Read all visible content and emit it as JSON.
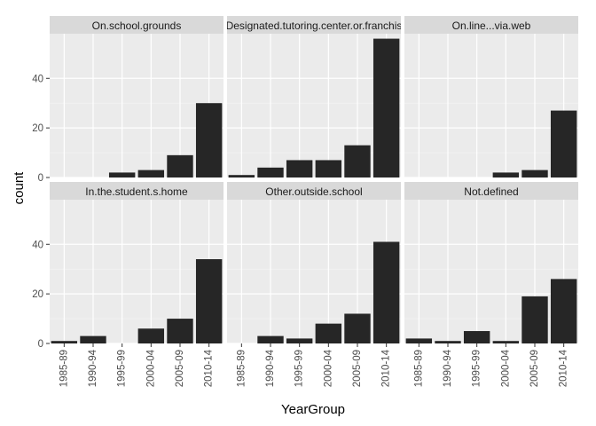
{
  "chart_data": {
    "type": "bar",
    "layout": "facet-grid",
    "xlabel": "YearGroup",
    "ylabel": "count",
    "categories": [
      "1985-89",
      "1990-94",
      "1995-99",
      "2000-04",
      "2005-09",
      "2010-14"
    ],
    "ylim": [
      0,
      58
    ],
    "yticks": [
      0,
      20,
      40
    ],
    "yticks_labels": [
      "0",
      "20",
      "40"
    ],
    "grid": true,
    "colors": {
      "bar": "#262626",
      "panel_bg": "#ebebeb",
      "strip_bg": "#d9d9d9",
      "grid_major": "#ffffff",
      "grid_minor": "#f5f5f5"
    },
    "panels": [
      {
        "label": "On.school.grounds",
        "values": [
          0,
          0,
          2,
          3,
          9,
          30
        ]
      },
      {
        "label": "Designated.tutoring.center.or.franchis",
        "values": [
          1,
          4,
          7,
          7,
          13,
          56
        ]
      },
      {
        "label": "On.line...via.web",
        "values": [
          0,
          0,
          0,
          2,
          3,
          27
        ]
      },
      {
        "label": "In.the.student.s.home",
        "values": [
          1,
          3,
          0,
          6,
          10,
          34
        ]
      },
      {
        "label": "Other.outside.school",
        "values": [
          0,
          3,
          2,
          8,
          12,
          41
        ]
      },
      {
        "label": "Not.defined",
        "values": [
          2,
          1,
          5,
          1,
          19,
          26
        ]
      }
    ]
  }
}
